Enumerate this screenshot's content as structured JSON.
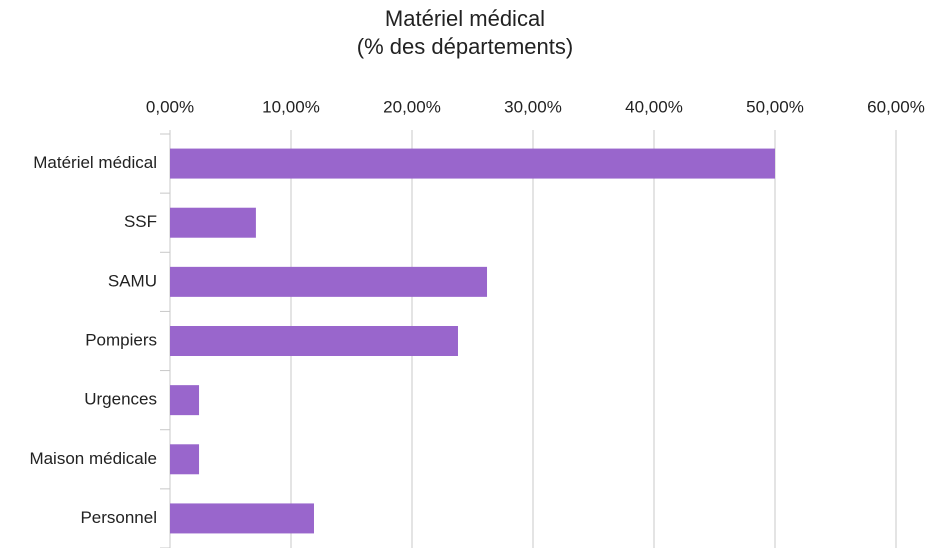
{
  "chart_data": {
    "type": "bar",
    "orientation": "horizontal",
    "title": "Matériel médical",
    "subtitle": "(% des départements)",
    "categories": [
      "Matériel médical",
      "SSF",
      "SAMU",
      "Pompiers",
      "Urgences",
      "Maison médicale",
      "Personnel"
    ],
    "values": [
      50,
      7.1,
      26.2,
      23.8,
      2.4,
      2.4,
      11.9
    ],
    "color": "#9966cc",
    "xlim": [
      0,
      60
    ],
    "xticks": [
      {
        "value": 0,
        "label": "0,00%"
      },
      {
        "value": 10,
        "label": "10,00%"
      },
      {
        "value": 20,
        "label": "20,00%"
      },
      {
        "value": 30,
        "label": "30,00%"
      },
      {
        "value": 40,
        "label": "40,00%"
      },
      {
        "value": 50,
        "label": "50,00%"
      },
      {
        "value": 60,
        "label": "60,00%"
      }
    ],
    "grid": true
  }
}
